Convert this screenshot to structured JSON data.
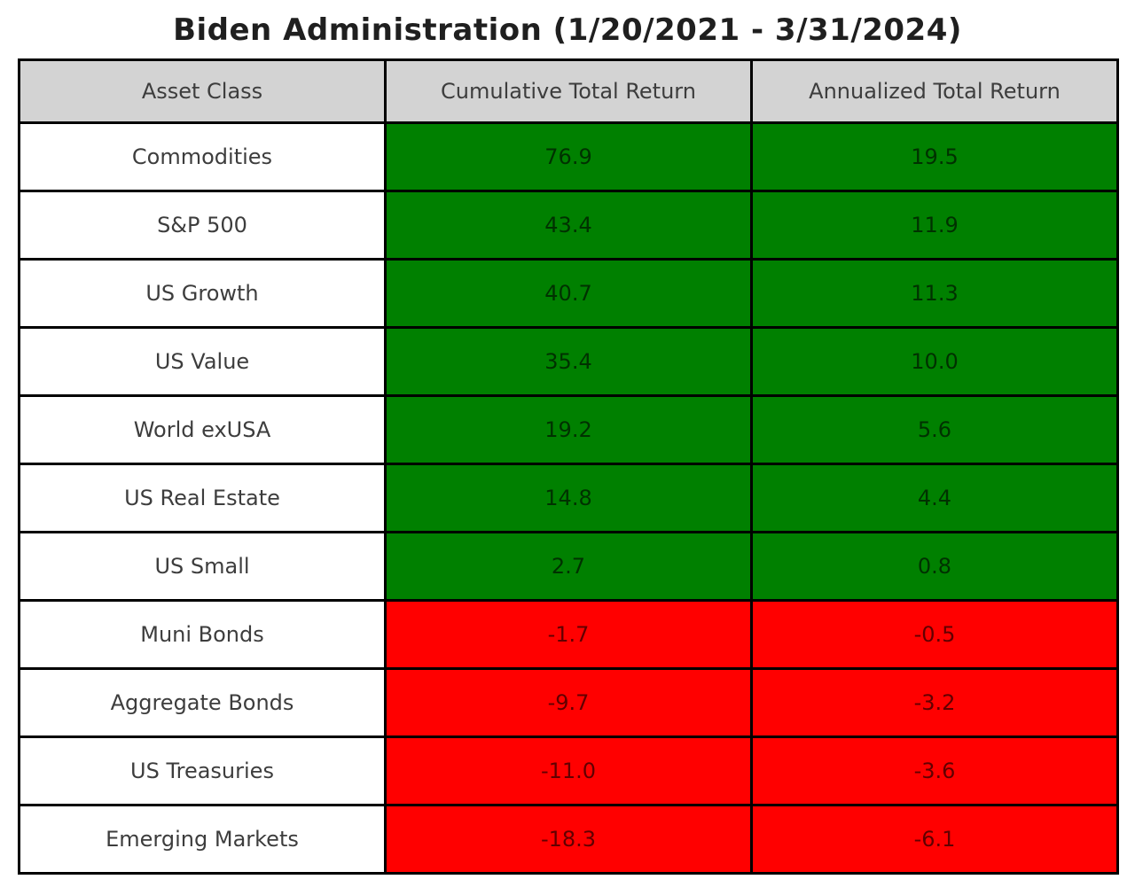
{
  "title": "Biden Administration (1/20/2021 - 3/31/2024)",
  "colors": {
    "positive": "#008000",
    "negative": "#ff0000",
    "header_bg": "#d3d3d3",
    "label_text": "#3d3d3d",
    "border": "#000000"
  },
  "table": {
    "columns": [
      "Asset Class",
      "Cumulative Total Return",
      "Annualized Total Return"
    ],
    "rows": [
      {
        "asset_class": "Commodities",
        "cumulative": "76.9",
        "annualized": "19.5",
        "direction": "positive"
      },
      {
        "asset_class": "S&P 500",
        "cumulative": "43.4",
        "annualized": "11.9",
        "direction": "positive"
      },
      {
        "asset_class": "US Growth",
        "cumulative": "40.7",
        "annualized": "11.3",
        "direction": "positive"
      },
      {
        "asset_class": "US Value",
        "cumulative": "35.4",
        "annualized": "10.0",
        "direction": "positive"
      },
      {
        "asset_class": "World exUSA",
        "cumulative": "19.2",
        "annualized": "5.6",
        "direction": "positive"
      },
      {
        "asset_class": "US Real Estate",
        "cumulative": "14.8",
        "annualized": "4.4",
        "direction": "positive"
      },
      {
        "asset_class": "US Small",
        "cumulative": "2.7",
        "annualized": "0.8",
        "direction": "positive"
      },
      {
        "asset_class": "Muni Bonds",
        "cumulative": "-1.7",
        "annualized": "-0.5",
        "direction": "negative"
      },
      {
        "asset_class": "Aggregate Bonds",
        "cumulative": "-9.7",
        "annualized": "-3.2",
        "direction": "negative"
      },
      {
        "asset_class": "US Treasuries",
        "cumulative": "-11.0",
        "annualized": "-3.6",
        "direction": "negative"
      },
      {
        "asset_class": "Emerging Markets",
        "cumulative": "-18.3",
        "annualized": "-6.1",
        "direction": "negative"
      }
    ]
  },
  "chart_data": {
    "type": "table",
    "title": "Biden Administration (1/20/2021 - 3/31/2024)",
    "categories": [
      "Commodities",
      "S&P 500",
      "US Growth",
      "US Value",
      "World exUSA",
      "US Real Estate",
      "US Small",
      "Muni Bonds",
      "Aggregate Bonds",
      "US Treasuries",
      "Emerging Markets"
    ],
    "series": [
      {
        "name": "Cumulative Total Return",
        "values": [
          76.9,
          43.4,
          40.7,
          35.4,
          19.2,
          14.8,
          2.7,
          -1.7,
          -9.7,
          -11.0,
          -18.3
        ]
      },
      {
        "name": "Annualized Total Return",
        "values": [
          19.5,
          11.9,
          11.3,
          10.0,
          5.6,
          4.4,
          0.8,
          -0.5,
          -3.2,
          -3.6,
          -6.1
        ]
      }
    ],
    "layout_hints": {
      "cell_color_rule": "positive values on green (#008000), negative values on red (#ff0000)",
      "header_background": "#d3d3d3",
      "grid": "black 3px cell borders"
    }
  }
}
